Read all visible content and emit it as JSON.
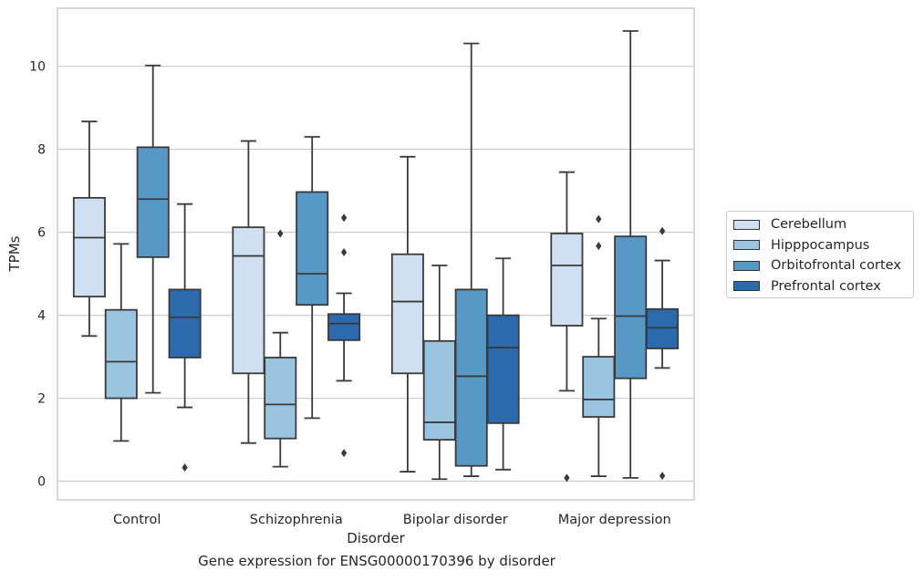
{
  "chart_data": {
    "type": "box",
    "title": "",
    "caption": "Gene expression for ENSG00000170396 by disorder",
    "xlabel": "Disorder",
    "ylabel": "TPMs",
    "ylim": [
      -0.45,
      11.4
    ],
    "yticks": [
      "0",
      "2",
      "4",
      "6",
      "8",
      "10"
    ],
    "categories": [
      "Control",
      "Schizophrenia",
      "Bipolar disorder",
      "Major depression"
    ],
    "grid": "horizontal",
    "legend_position": "right",
    "series": [
      {
        "name": "Cerebellum",
        "color": "#d0e0f2",
        "boxes": [
          {
            "whislo": 3.5,
            "q1": 4.45,
            "med": 5.87,
            "q3": 6.83,
            "whishi": 8.67,
            "fliers": []
          },
          {
            "whislo": 0.92,
            "q1": 2.6,
            "med": 5.43,
            "q3": 6.12,
            "whishi": 8.2,
            "fliers": []
          },
          {
            "whislo": 0.23,
            "q1": 2.6,
            "med": 4.33,
            "q3": 5.47,
            "whishi": 7.82,
            "fliers": []
          },
          {
            "whislo": 2.18,
            "q1": 3.75,
            "med": 5.2,
            "q3": 5.97,
            "whishi": 7.45,
            "fliers": [
              0.08
            ]
          }
        ]
      },
      {
        "name": "Hipppocampus",
        "color": "#9ac4df",
        "boxes": [
          {
            "whislo": 0.97,
            "q1": 2.0,
            "med": 2.88,
            "q3": 4.13,
            "whishi": 5.72,
            "fliers": []
          },
          {
            "whislo": 0.35,
            "q1": 1.03,
            "med": 1.85,
            "q3": 2.98,
            "whishi": 3.58,
            "fliers": [
              5.97
            ]
          },
          {
            "whislo": 0.05,
            "q1": 1.0,
            "med": 1.42,
            "q3": 3.38,
            "whishi": 5.2,
            "fliers": []
          },
          {
            "whislo": 0.12,
            "q1": 1.55,
            "med": 1.97,
            "q3": 3.0,
            "whishi": 3.92,
            "fliers": [
              5.67,
              6.32
            ]
          }
        ]
      },
      {
        "name": "Orbitofrontal cortex",
        "color": "#5898c6",
        "boxes": [
          {
            "whislo": 2.13,
            "q1": 5.4,
            "med": 6.8,
            "q3": 8.05,
            "whishi": 10.02,
            "fliers": []
          },
          {
            "whislo": 1.52,
            "q1": 4.25,
            "med": 5.0,
            "q3": 6.97,
            "whishi": 8.3,
            "fliers": []
          },
          {
            "whislo": 0.12,
            "q1": 0.37,
            "med": 2.53,
            "q3": 4.62,
            "whishi": 10.55,
            "fliers": []
          },
          {
            "whislo": 0.08,
            "q1": 2.48,
            "med": 3.98,
            "q3": 5.9,
            "whishi": 10.85,
            "fliers": []
          }
        ]
      },
      {
        "name": "Prefrontal cortex",
        "color": "#2a6aad",
        "boxes": [
          {
            "whislo": 1.78,
            "q1": 2.98,
            "med": 3.95,
            "q3": 4.62,
            "whishi": 6.68,
            "fliers": [
              0.33
            ]
          },
          {
            "whislo": 2.42,
            "q1": 3.4,
            "med": 3.8,
            "q3": 4.03,
            "whishi": 4.53,
            "fliers": [
              0.68,
              5.52,
              6.35
            ]
          },
          {
            "whislo": 0.28,
            "q1": 1.4,
            "med": 3.22,
            "q3": 4.0,
            "whishi": 5.37,
            "fliers": []
          },
          {
            "whislo": 2.73,
            "q1": 3.2,
            "med": 3.7,
            "q3": 4.15,
            "whishi": 5.32,
            "fliers": [
              0.13,
              6.03
            ]
          }
        ]
      }
    ]
  }
}
